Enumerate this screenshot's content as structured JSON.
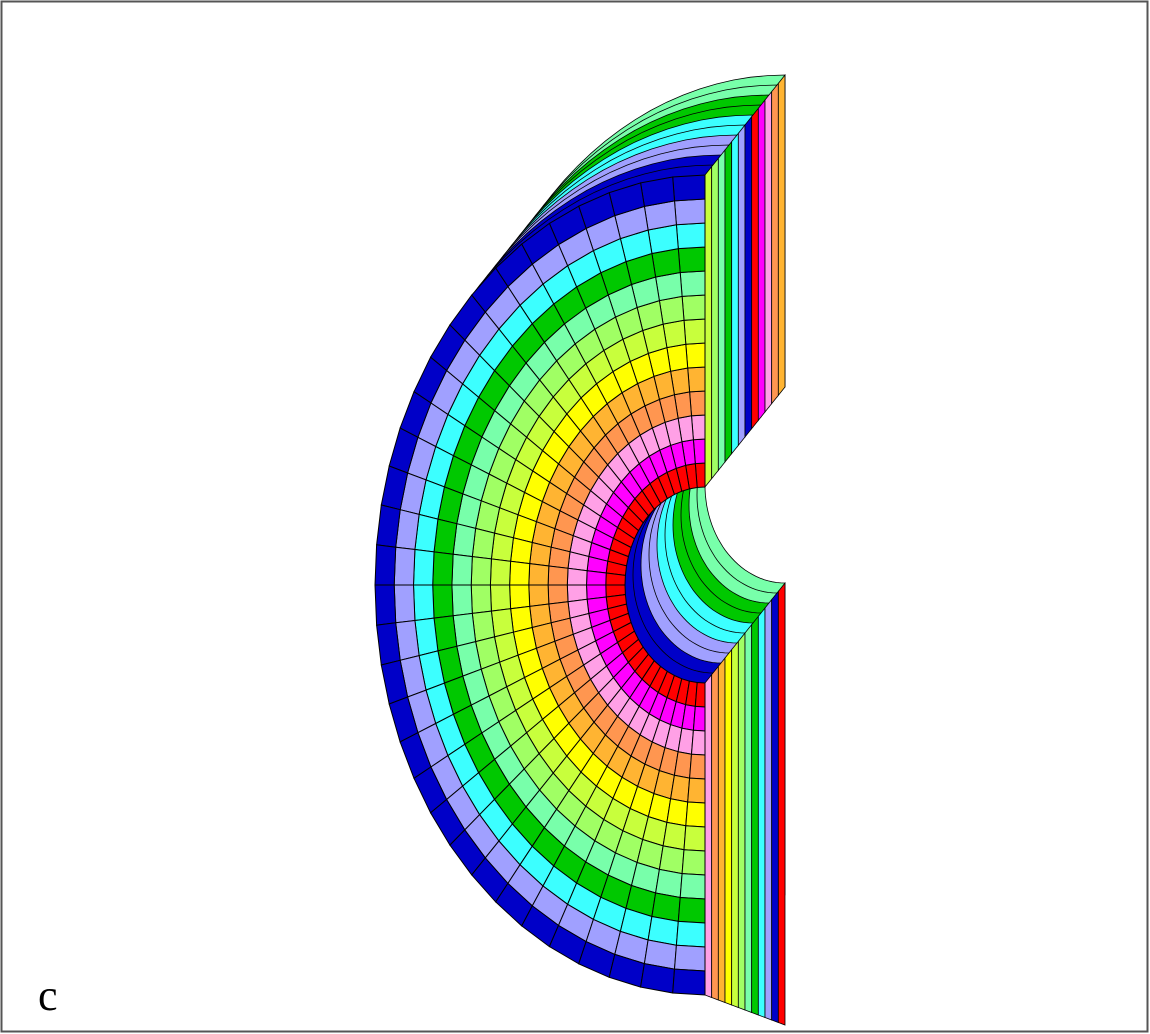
{
  "label": "c"
}
